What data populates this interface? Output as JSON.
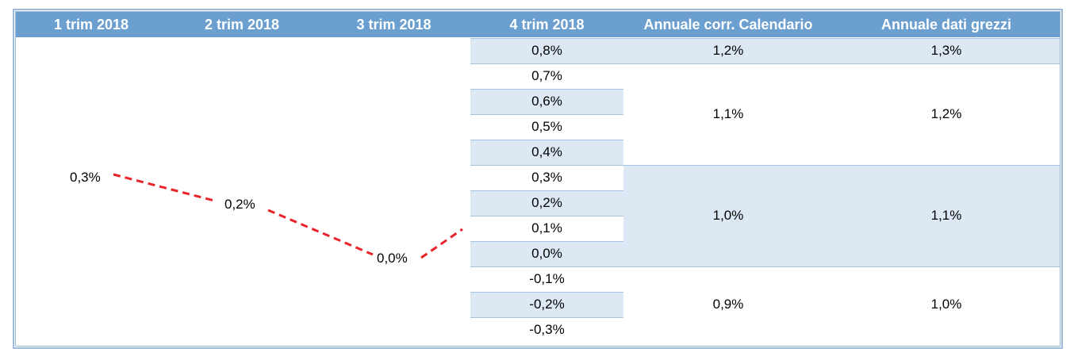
{
  "header": {
    "columns": [
      "1 trim 2018",
      "2 trim 2018",
      "3 trim 2018",
      "4 trim 2018",
      "Annuale corr. Calendario",
      "Annuale dati grezzi"
    ]
  },
  "q4_scenarios": [
    {
      "q4": "0,8%",
      "annual_cal": "1,2%",
      "annual_raw": "1,3%"
    },
    {
      "q4": "0,7%"
    },
    {
      "q4": "0,6%"
    },
    {
      "q4": "0,5%"
    },
    {
      "q4": "0,4%"
    },
    {
      "q4": "0,3%"
    },
    {
      "q4": "0,2%"
    },
    {
      "q4": "0,1%"
    },
    {
      "q4": "0,0%"
    },
    {
      "q4": "-0,1%"
    },
    {
      "q4": "-0,2%"
    },
    {
      "q4": "-0,3%"
    }
  ],
  "annual_groups": [
    {
      "from": 0,
      "to": 0,
      "annual_cal": "1,2%",
      "annual_raw": "1,3%",
      "shaded": true
    },
    {
      "from": 1,
      "to": 4,
      "annual_cal": "1,1%",
      "annual_raw": "1,2%",
      "shaded": false
    },
    {
      "from": 5,
      "to": 8,
      "annual_cal": "1,0%",
      "annual_raw": "1,1%",
      "shaded": true
    },
    {
      "from": 9,
      "to": 11,
      "annual_cal": "0,9%",
      "annual_raw": "1,0%",
      "shaded": false
    }
  ],
  "chart_data": {
    "type": "line",
    "categories": [
      "1 trim 2018",
      "2 trim 2018",
      "3 trim 2018"
    ],
    "series": [
      {
        "values": [
          0.3,
          0.2,
          0.0
        ],
        "labels": [
          "0,3%",
          "0,2%",
          "0,0%"
        ],
        "style": "dashed",
        "color": "#e8232a"
      }
    ]
  },
  "colors": {
    "header": "#6a9fd0",
    "band": "#dce8f4",
    "line": "#e8232a"
  }
}
